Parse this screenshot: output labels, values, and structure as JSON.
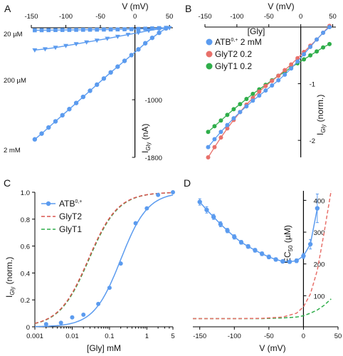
{
  "chart_data": [
    {
      "panel": "A",
      "type": "line",
      "title": "",
      "xlabel": "V (mV)",
      "ylabel": "I_Gly (nA)",
      "xlim": [
        -150,
        55
      ],
      "ylim": [
        -1800,
        0
      ],
      "xticks": [
        -150,
        -100,
        -50,
        0,
        50
      ],
      "yticks": [
        -1000,
        -1800
      ],
      "series": [
        {
          "name": "20 µM",
          "marker": "square",
          "color": "#5b9bef",
          "x": [
            -145,
            -135,
            -125,
            -115,
            -105,
            -95,
            -85,
            -75,
            -65,
            -55,
            -45,
            -35,
            -25,
            -15,
            -5,
            5,
            15,
            25,
            35,
            45
          ],
          "y": [
            -35,
            -34,
            -33,
            -32,
            -31,
            -30,
            -29,
            -28,
            -27,
            -26,
            -25,
            -24,
            -23,
            -21,
            -19,
            -16,
            -13,
            -9,
            -5,
            -1
          ]
        },
        {
          "name": "200 µM",
          "marker": "triangle",
          "color": "#5b9bef",
          "x": [
            -145,
            -130,
            -115,
            -100,
            -85,
            -70,
            -55,
            -40,
            -25,
            -10,
            5,
            20,
            35,
            50
          ],
          "y": [
            -310,
            -295,
            -275,
            -250,
            -225,
            -200,
            -175,
            -150,
            -122,
            -95,
            -68,
            -40,
            -15,
            -2
          ]
        },
        {
          "name": "2 mM",
          "marker": "circle",
          "color": "#5b9bef",
          "x": [
            -145,
            -135,
            -125,
            -115,
            -105,
            -95,
            -85,
            -75,
            -65,
            -55,
            -45,
            -35,
            -25,
            -15,
            -5,
            5,
            15,
            25,
            35,
            45
          ],
          "y": [
            -1550,
            -1470,
            -1385,
            -1300,
            -1215,
            -1130,
            -1045,
            -960,
            -875,
            -790,
            -705,
            -620,
            -540,
            -460,
            -380,
            -300,
            -215,
            -140,
            -70,
            -8
          ]
        }
      ]
    },
    {
      "panel": "B",
      "type": "line",
      "title": "",
      "xlabel": "V (mV)",
      "ylabel": "I_Gly (norm.)",
      "xlim": [
        -150,
        55
      ],
      "ylim": [
        -2.3,
        0.3
      ],
      "xticks": [
        -150,
        -100,
        -50,
        0,
        50
      ],
      "yticks": [
        -1,
        -2
      ],
      "legend_title": "[Gly]",
      "series": [
        {
          "name": "ATB0,+",
          "label": "2 mM",
          "color": "#5b9bef",
          "x": [
            -145,
            -135,
            -125,
            -115,
            -105,
            -95,
            -85,
            -75,
            -65,
            -55,
            -45,
            -35,
            -25,
            -15,
            -5,
            5,
            15,
            25,
            35,
            45
          ],
          "y": [
            -2.12,
            -1.98,
            -1.85,
            -1.73,
            -1.61,
            -1.5,
            -1.4,
            -1.3,
            -1.21,
            -1.12,
            -1.03,
            -0.94,
            -0.84,
            -0.73,
            -0.61,
            -0.48,
            -0.35,
            -0.22,
            -0.1,
            0.0
          ]
        },
        {
          "name": "GlyT2",
          "label": "0.2",
          "color": "#e8706a",
          "x": [
            -145,
            -135,
            -125,
            -115,
            -105,
            -95,
            -85,
            -75,
            -65,
            -55,
            -45,
            -35,
            -25,
            -15,
            -5,
            5,
            15,
            25,
            35,
            45
          ],
          "y": [
            -2.3,
            -2.12,
            -1.95,
            -1.79,
            -1.64,
            -1.5,
            -1.37,
            -1.25,
            -1.14,
            -1.04,
            -0.95,
            -0.86,
            -0.76,
            -0.66,
            -0.55,
            -0.44,
            -0.33,
            -0.22,
            -0.1,
            0.02
          ]
        },
        {
          "name": "GlyT1",
          "label": "0.2",
          "color": "#2fae4a",
          "x": [
            -145,
            -135,
            -125,
            -115,
            -105,
            -95,
            -85,
            -75,
            -65,
            -55,
            -45,
            -35,
            -25,
            -15,
            -5,
            5,
            15,
            25,
            35,
            45
          ],
          "y": [
            -1.85,
            -1.75,
            -1.65,
            -1.55,
            -1.45,
            -1.36,
            -1.27,
            -1.18,
            -1.1,
            -1.02,
            -0.94,
            -0.86,
            -0.79,
            -0.71,
            -0.64,
            -0.57,
            -0.5,
            -0.43,
            -0.36,
            -0.3
          ]
        }
      ]
    },
    {
      "panel": "C",
      "type": "line",
      "title": "",
      "xlabel": "[Gly] mM",
      "ylabel": "I_Gly (norm.)",
      "xscale": "log",
      "xlim": [
        0.001,
        5
      ],
      "ylim": [
        0,
        1.0
      ],
      "xticks": [
        0.001,
        0.01,
        0.1,
        1,
        5
      ],
      "xticklabels": [
        "0.001",
        "0.01",
        "0.1",
        "1",
        "5"
      ],
      "yticks": [
        0,
        0.2,
        0.4,
        0.6,
        0.8,
        1.0
      ],
      "yticklabels": [
        "0",
        "0.2",
        "0.4",
        "0.6",
        "0.8",
        "1.0"
      ],
      "series": [
        {
          "name": "ATB0,+",
          "style": "solid+markers",
          "color": "#5b9bef",
          "points_x": [
            0.002,
            0.005,
            0.01,
            0.02,
            0.05,
            0.1,
            0.2,
            0.5,
            1,
            2,
            5
          ],
          "points_y": [
            0.02,
            0.03,
            0.07,
            0.09,
            0.17,
            0.29,
            0.47,
            0.77,
            0.88,
            0.98,
            1.0
          ],
          "ec50": 0.2,
          "hill": 1.2
        },
        {
          "name": "GlyT2",
          "style": "dashed",
          "color": "#d9534f",
          "ec50": 0.027,
          "hill": 1.1
        },
        {
          "name": "GlyT1",
          "style": "dashed",
          "color": "#2fae4a",
          "ec50": 0.028,
          "hill": 1.1
        }
      ]
    },
    {
      "panel": "D",
      "type": "line",
      "title": "",
      "xlabel": "V (mV)",
      "ylabel": "EC50 (µM)",
      "xlim": [
        -160,
        50
      ],
      "ylim": [
        0,
        430
      ],
      "xticks": [
        -150,
        -100,
        -50,
        0,
        50
      ],
      "yticks": [
        100,
        200,
        300,
        400
      ],
      "series": [
        {
          "name": "ATB0,+",
          "style": "solid+markers+errorbars",
          "color": "#5b9bef",
          "x": [
            -150,
            -140,
            -130,
            -120,
            -110,
            -100,
            -90,
            -80,
            -70,
            -60,
            -50,
            -40,
            -30,
            -20,
            -10,
            0,
            10,
            20
          ],
          "y": [
            395,
            370,
            348,
            325,
            305,
            285,
            268,
            255,
            243,
            232,
            222,
            214,
            208,
            207,
            210,
            225,
            262,
            375
          ],
          "err": [
            10,
            10,
            8,
            8,
            7,
            7,
            6,
            6,
            6,
            6,
            6,
            5,
            5,
            5,
            6,
            8,
            15,
            45
          ]
        },
        {
          "name": "GlyT2",
          "style": "dashed",
          "color": "#e8706a",
          "x": [
            -160,
            -100,
            -60,
            -30,
            -10,
            0,
            10,
            20,
            30,
            40
          ],
          "y": [
            28,
            28,
            29,
            33,
            45,
            65,
            105,
            180,
            300,
            430
          ]
        },
        {
          "name": "GlyT1",
          "style": "dashed",
          "color": "#2fae4a",
          "x": [
            -160,
            -100,
            -60,
            -30,
            -10,
            0,
            10,
            20,
            30,
            40
          ],
          "y": [
            28,
            28,
            28,
            30,
            33,
            37,
            45,
            55,
            70,
            90
          ]
        }
      ]
    }
  ],
  "labels": {
    "A": "A",
    "B": "B",
    "C": "C",
    "D": "D",
    "a_xlabel": "V (mV)",
    "b_xlabel": "V (mV)",
    "d_xlabel": "V (mV)",
    "c_xlabel": "[Gly] mM",
    "a_ylabel": "I_Gly (nA)",
    "b_ylabel": "I_Gly (norm.)",
    "c_ylabel": "I_Gly (norm.)",
    "d_ylabel": "EC50 (µM)",
    "a_series_labels": [
      "20 µM",
      "200 µM",
      "2 mM"
    ],
    "b_legend_title": "[Gly]",
    "c_legend": [
      "ATB0,+",
      "GlyT2",
      "GlyT1"
    ]
  }
}
